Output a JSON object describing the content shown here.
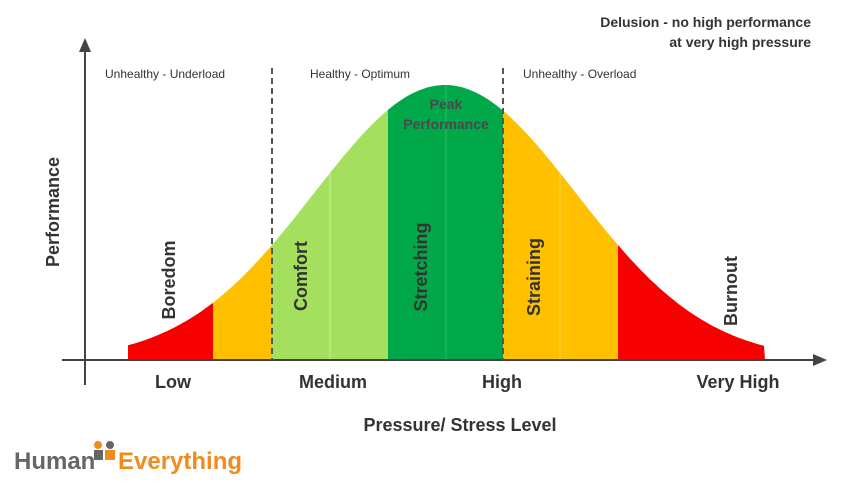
{
  "note": {
    "line1": "Delusion - no high performance",
    "line2": "at very high pressure"
  },
  "regions": [
    "Unhealthy - Underload",
    "Healthy - Optimum",
    "Unhealthy - Overload"
  ],
  "peak": {
    "line1": "Peak",
    "line2": "Performance"
  },
  "zones": [
    "Boredom",
    "Comfort",
    "Stretching",
    "Straining",
    "Burnout"
  ],
  "x_levels": [
    "Low",
    "Medium",
    "High",
    "Very High"
  ],
  "x_axis_label": "Pressure/ Stress Level",
  "y_axis_label": "Performance",
  "logo": {
    "part1": "Human",
    "part2": "Everything"
  }
}
